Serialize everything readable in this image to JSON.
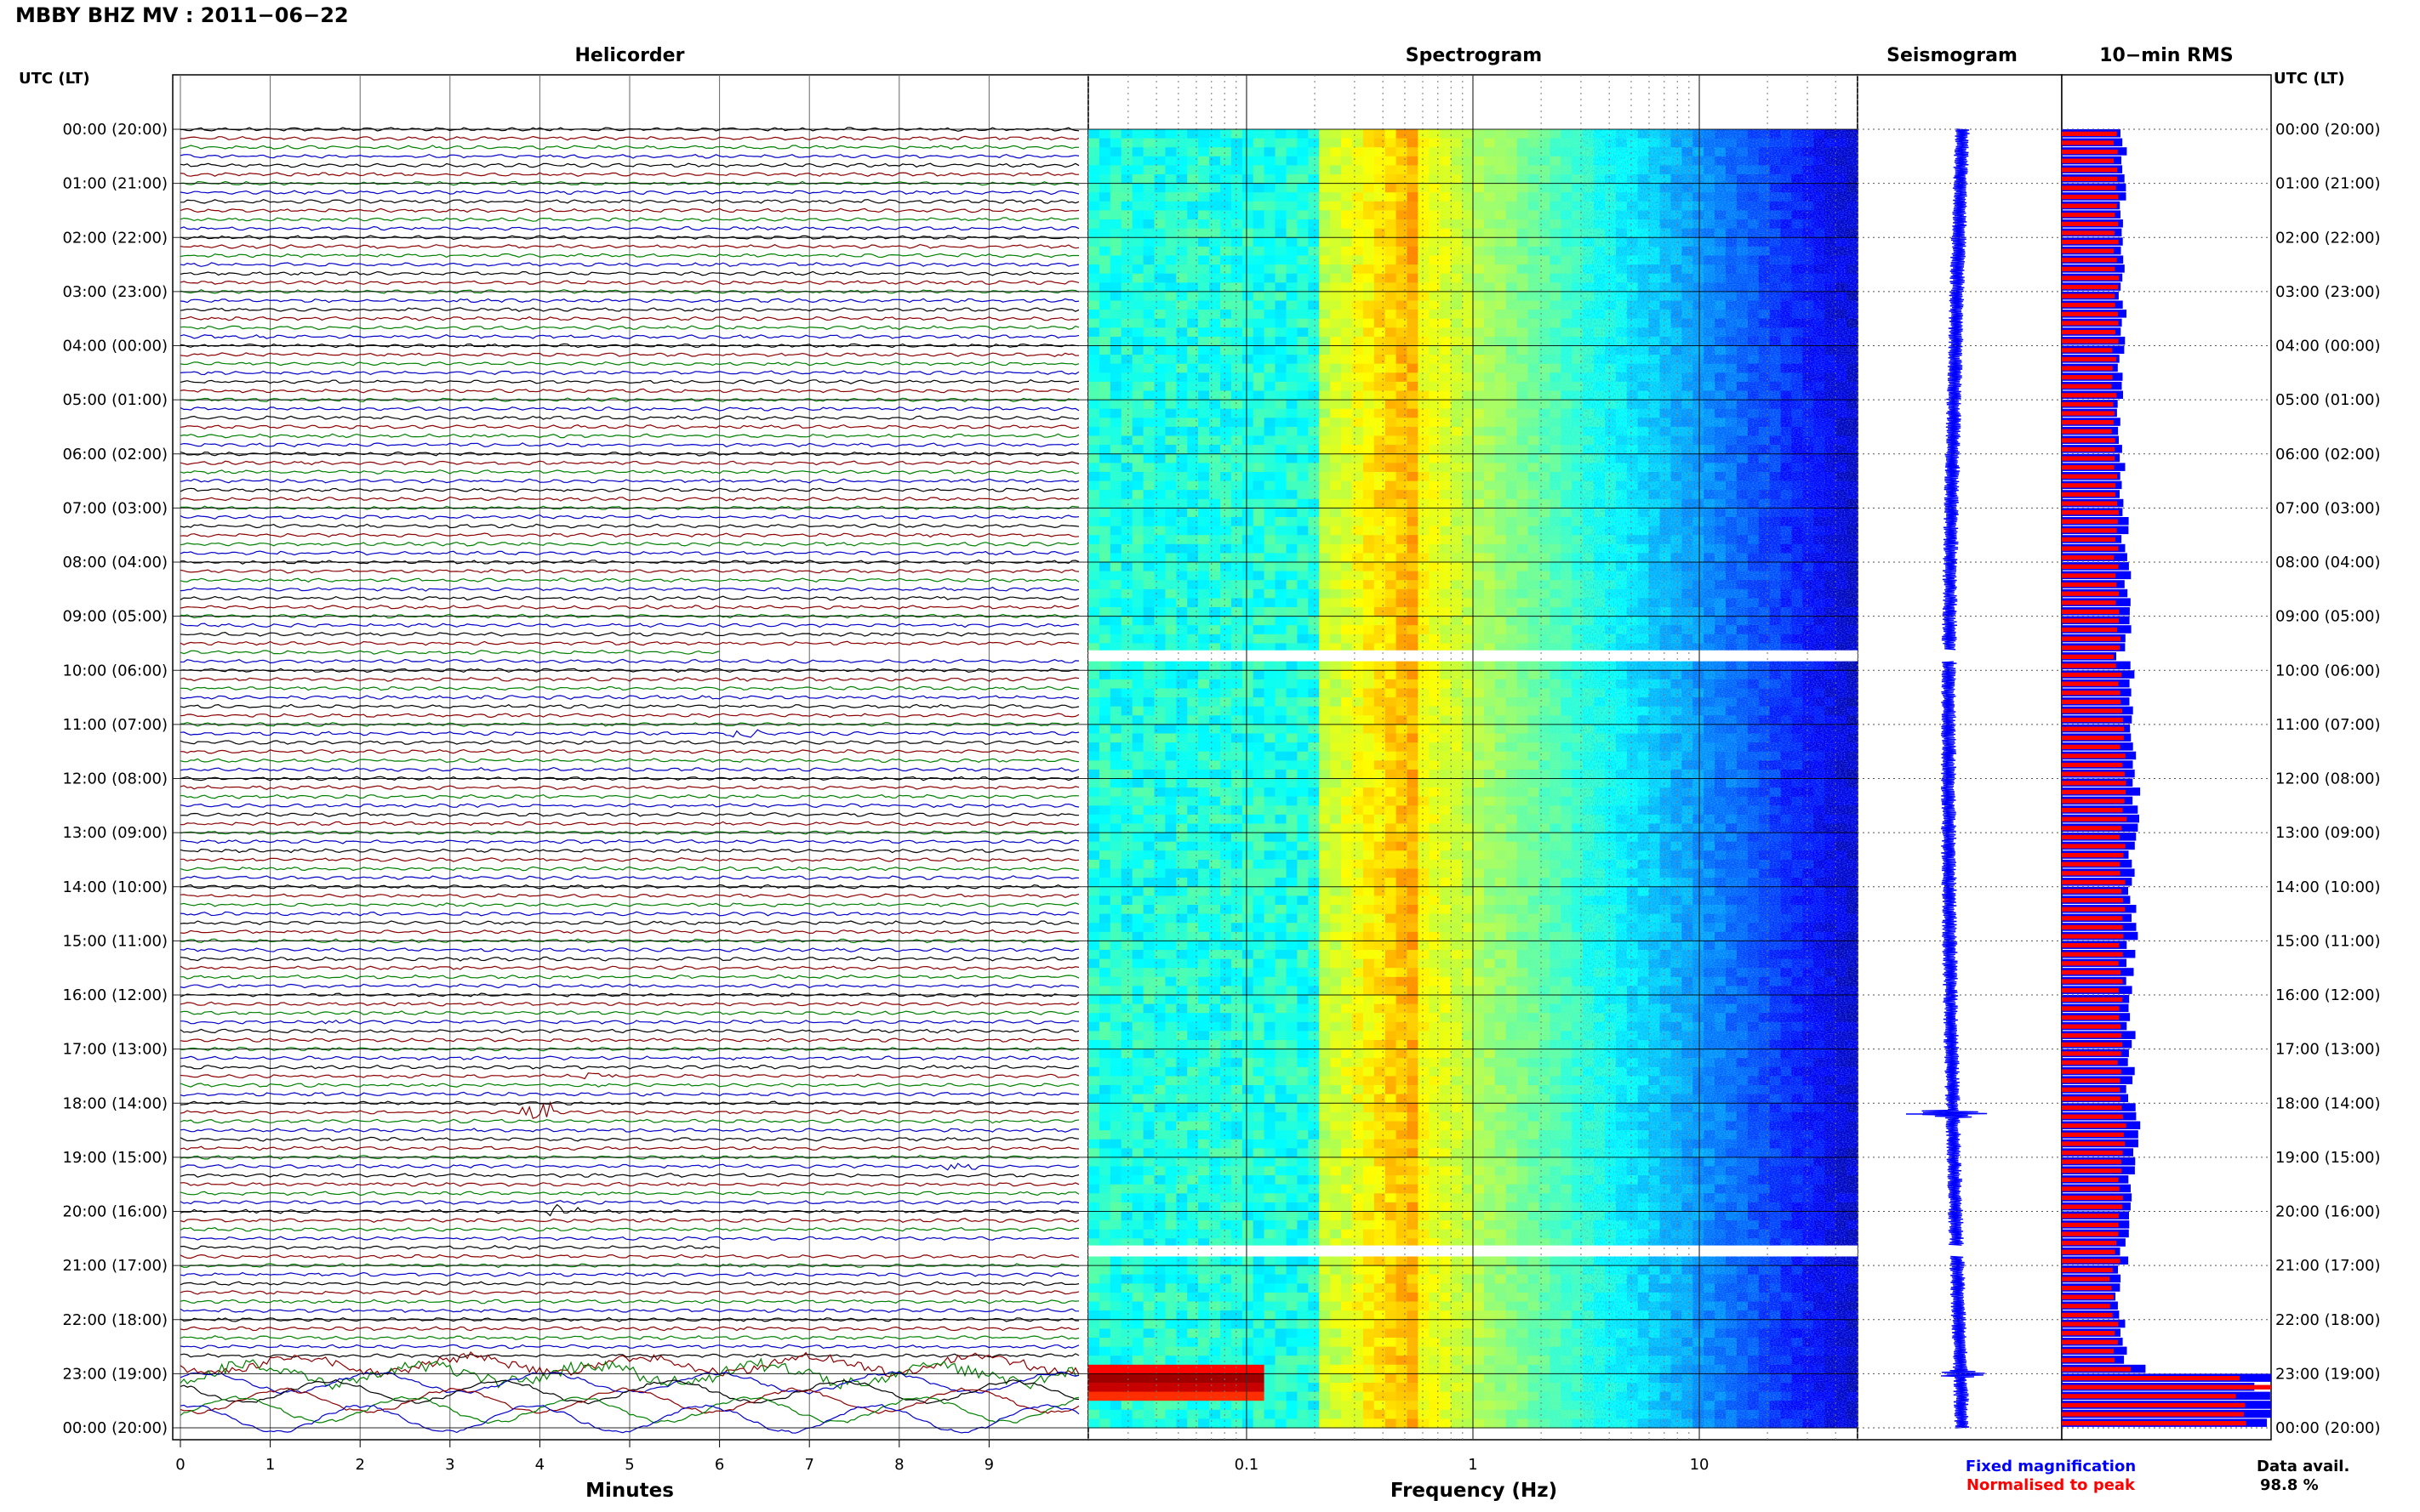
{
  "title": "MBBY BHZ MV : 2011−06−22",
  "time_header_left": "UTC (LT)",
  "time_header_right": "UTC (LT)",
  "time_labels": [
    "00:00 (20:00)",
    "01:00 (21:00)",
    "02:00 (22:00)",
    "03:00 (23:00)",
    "04:00 (00:00)",
    "05:00 (01:00)",
    "06:00 (02:00)",
    "07:00 (03:00)",
    "08:00 (04:00)",
    "09:00 (05:00)",
    "10:00 (06:00)",
    "11:00 (07:00)",
    "12:00 (08:00)",
    "13:00 (09:00)",
    "14:00 (10:00)",
    "15:00 (11:00)",
    "16:00 (12:00)",
    "17:00 (13:00)",
    "18:00 (14:00)",
    "19:00 (15:00)",
    "20:00 (16:00)",
    "21:00 (17:00)",
    "22:00 (18:00)",
    "23:00 (19:00)",
    "00:00 (20:00)"
  ],
  "legend": {
    "fixed": "Fixed magnification",
    "normalised": "Normalised to peak",
    "avail_label": "Data avail.",
    "avail_value": "98.8 %"
  },
  "colors": {
    "helicorder_traces": [
      "#000000",
      "#8b0000",
      "#008000",
      "#0000c8"
    ],
    "rms_fixed": "#0000ff",
    "rms_normalised": "#ff0000",
    "legend_fixed": "#0000ff",
    "legend_normalised": "#ff0000"
  },
  "chart_data": [
    {
      "type": "line",
      "title": "Helicorder",
      "xlabel": "Minutes",
      "xticks": [
        "0",
        "1",
        "2",
        "3",
        "4",
        "5",
        "6",
        "7",
        "8",
        "9"
      ],
      "xlim": [
        0,
        10
      ],
      "rows_per_hour": 6,
      "hours": 24,
      "gaps_hours": [
        [
          9.63,
          9.83
        ],
        [
          20.63,
          20.83
        ]
      ],
      "events": [
        {
          "hour": 11.17,
          "minute": 6.1,
          "amp": 2.0
        },
        {
          "hour": 16.5,
          "minute": 1.6,
          "amp": 1.5
        },
        {
          "hour": 17.5,
          "minute": 4.5,
          "amp": 1.5
        },
        {
          "hour": 18.17,
          "minute": 3.8,
          "amp": 5.0
        },
        {
          "hour": 19.17,
          "minute": 8.5,
          "amp": 1.5
        },
        {
          "hour": 20.0,
          "minute": 4.1,
          "amp": 3.0
        },
        {
          "hour": 22.85,
          "minute": 0.0,
          "amp": 4.0,
          "duration": 10
        },
        {
          "hour": 23.0,
          "minute": 0.0,
          "amp": 6.0,
          "duration": 10
        }
      ]
    },
    {
      "type": "heatmap",
      "title": "Spectrogram",
      "xlabel": "Frequency (Hz)",
      "xscale": "log",
      "xlim": [
        0.02,
        50
      ],
      "xticks": [
        "0.1",
        "1",
        "10"
      ],
      "colormap": "jet",
      "peak_band_hz": [
        0.2,
        0.6
      ],
      "gaps_hours": [
        [
          9.63,
          9.83
        ],
        [
          20.63,
          20.83
        ]
      ],
      "high_energy": {
        "hours": [
          22.75,
          23.4
        ],
        "freq_hz": [
          0.02,
          0.12
        ]
      }
    },
    {
      "type": "line",
      "title": "Seismogram",
      "xlabel": "",
      "gaps_hours": [
        [
          9.63,
          9.83
        ],
        [
          20.63,
          20.83
        ]
      ],
      "spikes": [
        {
          "hour": 18.2,
          "amp": 3.0
        },
        {
          "hour": 23.0,
          "amp": 2.0
        }
      ]
    },
    {
      "type": "bar",
      "title": "10−min RMS",
      "orientation": "horizontal",
      "series": [
        {
          "name": "Fixed magnification",
          "color": "#0000ff"
        },
        {
          "name": "Normalised to peak",
          "color": "#ff0000"
        }
      ],
      "fixed_hourly": [
        0.3,
        0.29,
        0.29,
        0.29,
        0.28,
        0.28,
        0.29,
        0.3,
        0.31,
        0.31,
        0.33,
        0.34,
        0.36,
        0.34,
        0.34,
        0.33,
        0.33,
        0.33,
        0.36,
        0.33,
        0.31,
        0.27,
        0.3,
        1.0
      ],
      "normalised_hourly": [
        0.26,
        0.26,
        0.26,
        0.26,
        0.25,
        0.25,
        0.26,
        0.26,
        0.27,
        0.27,
        0.28,
        0.29,
        0.3,
        0.29,
        0.29,
        0.28,
        0.28,
        0.28,
        0.3,
        0.28,
        0.27,
        0.24,
        0.26,
        0.85
      ],
      "peak_hour": 23.0
    }
  ]
}
